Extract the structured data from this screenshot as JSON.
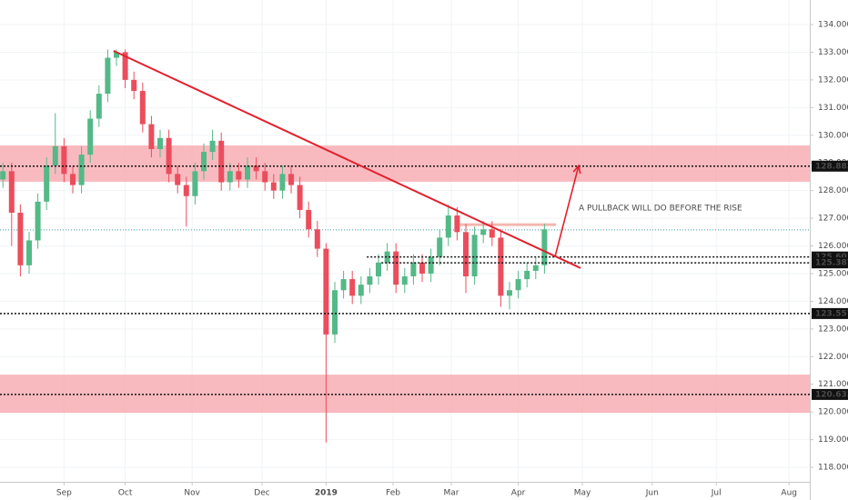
{
  "chart_data": {
    "type": "candlestick",
    "annotation": "A PULLBACK WILL DO BEFORE THE RISE",
    "x": [
      -21,
      -18,
      -15,
      -12,
      -9,
      -6,
      -3,
      0,
      3,
      6,
      9,
      12,
      15,
      18,
      21,
      24,
      27,
      30,
      33,
      36,
      39,
      42,
      45,
      48,
      51,
      54,
      57,
      60,
      63,
      66,
      69,
      72,
      75,
      78,
      81,
      84,
      87,
      90,
      93,
      96,
      99,
      102,
      105,
      108,
      111,
      114,
      117,
      120,
      123,
      126,
      129,
      132,
      135,
      138,
      141,
      144,
      147,
      150,
      153,
      156,
      159,
      162,
      165
    ],
    "open": [
      128.4,
      128.7,
      127.2,
      125.3,
      126.2,
      127.6,
      128.9,
      129.6,
      128.6,
      128.2,
      129.3,
      130.6,
      131.5,
      132.8,
      133.0,
      132.0,
      131.6,
      130.4,
      129.5,
      129.9,
      128.6,
      128.2,
      127.8,
      128.7,
      129.4,
      129.8,
      128.3,
      128.7,
      128.4,
      128.9,
      128.7,
      128.3,
      128.0,
      128.6,
      128.2,
      127.3,
      126.6,
      125.9,
      122.8,
      124.4,
      124.8,
      124.2,
      124.6,
      124.9,
      125.4,
      125.8,
      124.6,
      124.9,
      125.4,
      125.0,
      125.6,
      126.3,
      127.1,
      126.5,
      124.9,
      126.4,
      126.6,
      126.3,
      124.2,
      124.4,
      124.8,
      125.1,
      125.3
    ],
    "high": [
      129.0,
      129.0,
      127.5,
      126.5,
      127.9,
      129.2,
      130.8,
      129.9,
      128.9,
      129.6,
      130.9,
      131.8,
      133.1,
      133.1,
      133.1,
      132.3,
      131.9,
      130.7,
      130.2,
      130.2,
      128.9,
      128.5,
      129.0,
      129.7,
      130.2,
      130.1,
      129.0,
      129.0,
      129.2,
      129.2,
      129.0,
      128.6,
      128.9,
      128.9,
      128.5,
      127.6,
      126.9,
      126.1,
      124.7,
      125.1,
      125.1,
      124.9,
      125.2,
      125.7,
      126.1,
      126.1,
      125.2,
      125.7,
      125.7,
      125.9,
      126.6,
      127.5,
      127.4,
      126.8,
      126.7,
      126.9,
      126.9,
      126.6,
      124.7,
      125.1,
      125.4,
      125.6,
      126.8
    ],
    "low": [
      128.1,
      126.0,
      124.9,
      125.0,
      125.9,
      127.3,
      128.6,
      128.3,
      127.9,
      127.9,
      129.0,
      130.3,
      131.2,
      132.5,
      131.7,
      131.3,
      130.1,
      129.2,
      129.2,
      128.3,
      127.9,
      126.7,
      127.5,
      128.4,
      129.1,
      128.0,
      128.0,
      128.1,
      128.1,
      128.4,
      128.0,
      127.7,
      127.7,
      127.9,
      127.0,
      126.3,
      125.6,
      118.9,
      122.5,
      124.1,
      123.9,
      123.9,
      124.3,
      124.6,
      125.1,
      124.3,
      124.3,
      124.6,
      124.7,
      124.7,
      125.3,
      126.0,
      126.2,
      124.3,
      124.6,
      126.1,
      126.0,
      123.8,
      123.7,
      124.1,
      124.5,
      124.8,
      125.0
    ],
    "close": [
      128.7,
      127.2,
      125.3,
      126.2,
      127.6,
      128.9,
      129.6,
      128.6,
      128.2,
      129.3,
      130.6,
      131.5,
      132.8,
      133.0,
      132.0,
      131.6,
      130.4,
      129.5,
      129.9,
      128.6,
      128.2,
      127.8,
      128.7,
      129.4,
      129.8,
      128.3,
      128.7,
      128.4,
      128.9,
      128.7,
      128.3,
      128.0,
      128.6,
      128.2,
      127.3,
      126.6,
      125.9,
      122.8,
      124.4,
      124.8,
      124.2,
      124.6,
      124.9,
      125.4,
      125.8,
      124.6,
      124.9,
      125.4,
      125.0,
      125.6,
      126.3,
      127.1,
      126.5,
      124.9,
      126.4,
      126.6,
      126.3,
      124.2,
      124.4,
      124.8,
      125.1,
      125.3,
      126.6
    ],
    "up_color": "#53b987",
    "down_color": "#eb4d5c",
    "xlim": [
      -22,
      256.125
    ],
    "xticks": [
      {
        "value": 0,
        "label": "Sep"
      },
      {
        "value": 21,
        "label": "Oct"
      },
      {
        "value": 44,
        "label": "Nov"
      },
      {
        "value": 68,
        "label": "Dec"
      },
      {
        "value": 90,
        "label": "2019"
      },
      {
        "value": 113,
        "label": "Feb"
      },
      {
        "value": 133,
        "label": "Mar"
      },
      {
        "value": 156,
        "label": "Apr"
      },
      {
        "value": 178,
        "label": "May"
      },
      {
        "value": 202,
        "label": "Jun"
      },
      {
        "value": 224,
        "label": "Jul"
      },
      {
        "value": 249,
        "label": "Aug"
      }
    ],
    "ylim": [
      117.476,
      134.887
    ],
    "yticks": [
      {
        "value": 118,
        "label": "118.000"
      },
      {
        "value": 119,
        "label": "119.000"
      },
      {
        "value": 120,
        "label": "120.000"
      },
      {
        "value": 121,
        "label": "121.000"
      },
      {
        "value": 122,
        "label": "122.000"
      },
      {
        "value": 123,
        "label": "123.000"
      },
      {
        "value": 124,
        "label": "124.000"
      },
      {
        "value": 125,
        "label": "125.000"
      },
      {
        "value": 126,
        "label": "126.000"
      },
      {
        "value": 127,
        "label": "127.000"
      },
      {
        "value": 128,
        "label": "128.000"
      },
      {
        "value": 129,
        "label": "129.000"
      },
      {
        "value": 130,
        "label": "130.000"
      },
      {
        "value": 131,
        "label": "131.000"
      },
      {
        "value": 132,
        "label": "132.000"
      },
      {
        "value": 133,
        "label": "133.000"
      },
      {
        "value": 134,
        "label": "134.000"
      }
    ],
    "grid": true,
    "levels": [
      {
        "value": 128.883,
        "label": "128.883",
        "from": -22
      },
      {
        "value": 125.601,
        "label": "125.601",
        "from": 104
      },
      {
        "value": 125.387,
        "label": "125.387",
        "from": 109
      },
      {
        "value": 123.557,
        "label": "123.557",
        "from": -22
      },
      {
        "value": 120.633,
        "label": "120.633",
        "from": -22
      }
    ],
    "zones": [
      {
        "y": [
          128.32,
          129.63
        ],
        "color": "#f7a3a9"
      },
      {
        "y": [
          119.97,
          121.35
        ],
        "color": "#f7a3a9"
      }
    ],
    "trendline": {
      "x": [
        17,
        177.4
      ],
      "y": [
        133.05,
        125.2
      ],
      "color": "#e3202c"
    },
    "arrow": {
      "x": [
        168.6,
        176.75
      ],
      "y": [
        125.6,
        128.9
      ],
      "color": "#e3202c"
    },
    "resistance": {
      "x": [
        136,
        169
      ],
      "y": [
        126.77,
        126.77
      ],
      "color": "#f4b6b0"
    },
    "last_price": {
      "value": 126.58,
      "color": "#3b9aa8"
    }
  }
}
